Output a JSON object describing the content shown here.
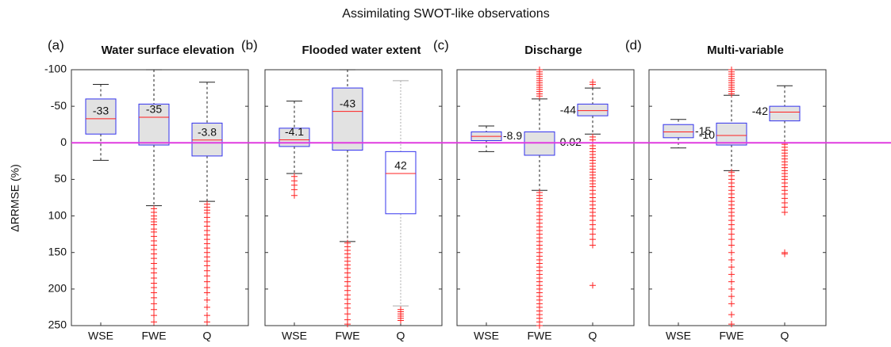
{
  "chart_data": {
    "type": "box",
    "title": "Assimilating SWOT-like observations",
    "ylabel": "ΔRRMSE (%)",
    "ylim": [
      -100,
      250
    ],
    "y_reversed": true,
    "yticks": [
      -100,
      -50,
      0,
      50,
      100,
      150,
      200,
      250
    ],
    "reference_line": 0,
    "reference_color": "#e03ce0",
    "box_edge_color": "#3333ee",
    "median_color": "#ff2020",
    "outlier_color": "#ff2020",
    "panels": [
      {
        "tag": "(a)",
        "title": "Water surface elevation",
        "categories": [
          "WSE",
          "FWE",
          "Q"
        ],
        "boxes": [
          {
            "whisker_low": -80,
            "q1": -60,
            "median": -33,
            "q3": -12,
            "whisker_high": 24,
            "outliers": [],
            "fill": "#e2e2e2",
            "whisker_color": "#222222",
            "label_side": "inside"
          },
          {
            "whisker_low": -100,
            "q1": -53,
            "median": -35,
            "q3": 3,
            "whisker_high": 86,
            "outliers": [
              90,
              95,
              100,
              104,
              108,
              112,
              118,
              122,
              128,
              134,
              140,
              146,
              152,
              158,
              165,
              172,
              178,
              185,
              192,
              198,
              205,
              212,
              220,
              228,
              236,
              245
            ],
            "fill": "#e2e2e2",
            "whisker_color": "#222222",
            "label_side": "inside"
          },
          {
            "whisker_low": -83,
            "q1": -27,
            "median": -3.8,
            "q3": 18,
            "whisker_high": 80,
            "outliers": [
              84,
              88,
              92,
              96,
              102,
              108,
              114,
              120,
              126,
              132,
              138,
              144,
              150,
              156,
              162,
              168,
              175,
              182,
              190,
              198,
              205,
              215,
              225,
              236,
              245
            ],
            "fill": "#e2e2e2",
            "whisker_color": "#222222",
            "label_side": "inside"
          }
        ]
      },
      {
        "tag": "(b)",
        "title": "Flooded water extent",
        "categories": [
          "WSE",
          "FWE",
          "Q"
        ],
        "boxes": [
          {
            "whisker_low": -57,
            "q1": -20,
            "median": -4.1,
            "q3": 5,
            "whisker_high": 42,
            "outliers": [
              46,
              52,
              58,
              64,
              72
            ],
            "fill": "#e2e2e2",
            "whisker_color": "#222222",
            "label_side": "inside"
          },
          {
            "whisker_low": -100,
            "q1": -75,
            "median": -43,
            "q3": 10,
            "whisker_high": 135,
            "outliers": [
              137,
              142,
              147,
              152,
              157,
              162,
              167,
              172,
              178,
              184,
              190,
              196,
              202,
              208,
              214,
              220,
              226,
              234,
              242,
              248
            ],
            "fill": "#e2e2e2",
            "whisker_color": "#222222",
            "label_side": "inside"
          },
          {
            "whisker_low": -85,
            "q1": 12,
            "median": 42,
            "q3": 97,
            "whisker_high": 223,
            "outliers": [
              228,
              231,
              234,
              237,
              240,
              243
            ],
            "fill": "#ffffff",
            "whisker_color": "#aaaaaa",
            "label_side": "inside"
          }
        ]
      },
      {
        "tag": "(c)",
        "title": "Discharge",
        "categories": [
          "WSE",
          "FWE",
          "Q"
        ],
        "boxes": [
          {
            "whisker_low": -23,
            "q1": -15,
            "median": -8.9,
            "q3": -3,
            "whisker_high": 12,
            "outliers": [],
            "fill": "#e2e2e2",
            "whisker_color": "#222222",
            "label_side": "right"
          },
          {
            "whisker_low": -60,
            "q1": -15,
            "median": -0.02,
            "q3": 17,
            "whisker_high": 65,
            "outliers": [
              -100,
              -97,
              -94,
              -91,
              -88,
              -85,
              -82,
              -79,
              -76,
              -73,
              -70,
              -67,
              -64,
              68,
              72,
              76,
              80,
              85,
              90,
              95,
              100,
              105,
              110,
              115,
              120,
              125,
              130,
              135,
              140,
              145,
              150,
              155,
              160,
              165,
              170,
              175,
              180,
              185,
              190,
              195,
              200,
              205,
              210,
              215,
              220,
              225,
              230,
              235,
              240,
              245,
              250
            ],
            "fill": "#e2e2e2",
            "whisker_color": "#222222",
            "label_side": "right"
          },
          {
            "whisker_low": -75,
            "q1": -53,
            "median": -44,
            "q3": -37,
            "whisker_high": -12,
            "outliers": [
              -83,
              -80,
              -8,
              -4,
              0,
              4,
              8,
              12,
              16,
              20,
              24,
              28,
              32,
              36,
              40,
              44,
              48,
              52,
              56,
              60,
              65,
              70,
              75,
              80,
              85,
              90,
              95,
              100,
              106,
              112,
              118,
              125,
              132,
              140,
              195
            ],
            "fill": "#e2e2e2",
            "whisker_color": "#222222",
            "label_side": "left"
          }
        ]
      },
      {
        "tag": "(d)",
        "title": "Multi-variable",
        "categories": [
          "WSE",
          "FWE",
          "Q"
        ],
        "boxes": [
          {
            "whisker_low": -32,
            "q1": -25,
            "median": -15,
            "q3": -7,
            "whisker_high": 7,
            "outliers": [],
            "fill": "#e2e2e2",
            "whisker_color": "#222222",
            "label_side": "right"
          },
          {
            "whisker_low": -65,
            "q1": -27,
            "median": -10,
            "q3": 3,
            "whisker_high": 38,
            "outliers": [
              -100,
              -97,
              -94,
              -91,
              -88,
              -85,
              -82,
              -79,
              -76,
              -73,
              -70,
              -67,
              40,
              45,
              50,
              55,
              60,
              65,
              70,
              75,
              80,
              85,
              90,
              95,
              100,
              106,
              112,
              118,
              125,
              132,
              140,
              150,
              160,
              170,
              180,
              190,
              200,
              210,
              220,
              235,
              248
            ],
            "fill": "#e2e2e2",
            "whisker_color": "#222222",
            "label_side": "left"
          },
          {
            "whisker_low": -78,
            "q1": -50,
            "median": -42,
            "q3": -30,
            "whisker_high": 0,
            "outliers": [
              2,
              6,
              10,
              14,
              18,
              22,
              26,
              30,
              34,
              38,
              42,
              46,
              50,
              55,
              60,
              65,
              70,
              76,
              82,
              88,
              95,
              150,
              152
            ],
            "fill": "#e2e2e2",
            "whisker_color": "#222222",
            "label_side": "left"
          }
        ]
      }
    ]
  }
}
